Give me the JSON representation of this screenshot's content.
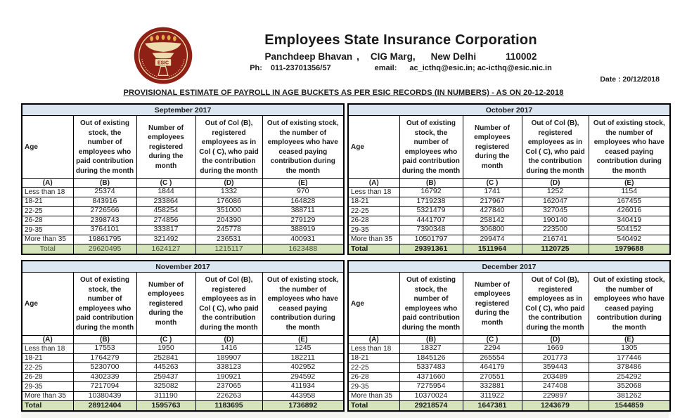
{
  "page": {
    "doc_title": "PROVISIONAL ESTIMATE OF PAYROLL IN AGE BUCKETS AS PER ESIC RECORDS (IN NUMBERS) - AS ON 20-12-2018"
  },
  "header": {
    "logo_acronym": "ESIC",
    "org_name": "Employees State Insurance Corporation",
    "address_building": "Panchdeep Bhavan",
    "address_comma": ",",
    "address_street": "CIG Marg,",
    "address_city": "New Delhi",
    "address_pin": "110002",
    "ph_label": "Ph:",
    "phone": "011-23701356/57",
    "email_label": "email:",
    "email": "ac_icthq@esic.in; ac-icthq@esic.nic.in",
    "date_label": "Date : 20/12/2018"
  },
  "colors": {
    "month_header_bg": "#dce6f1",
    "total_row_bg": "#d6e4bc",
    "logo_maroon": "#8e2016",
    "logo_cream": "#efdcae",
    "logo_gold": "#e7a93c"
  },
  "tables": [
    {
      "month": "September 2017",
      "col_headers": [
        "Age",
        "Out of existing stock, the number of employees who paid contribution during the month",
        "Number of employees registered during the month",
        "Out of Col (B), registered employees as in Col ( C), who paid the contribution during the month",
        "Out of existing stock, the number of  employees who have ceased paying contribution during the month"
      ],
      "letter_row": [
        "(A)",
        "(B)",
        "(C )",
        "(D)",
        "(E)"
      ],
      "rows": [
        [
          "Less than 18",
          "25374",
          "1844",
          "1332",
          "970"
        ],
        [
          "18-21",
          "843916",
          "233864",
          "176086",
          "164828"
        ],
        [
          "22-25",
          "2726566",
          "458254",
          "351000",
          "388711"
        ],
        [
          "26-28",
          "2398743",
          "274856",
          "204390",
          "279129"
        ],
        [
          "29-35",
          "3764101",
          "333817",
          "245778",
          "388919"
        ],
        [
          "More than 35",
          "19861795",
          "321492",
          "236531",
          "400931"
        ]
      ],
      "total": [
        "Total",
        "29620495",
        "1624127",
        "1215117",
        "1623488"
      ],
      "total_style": "centered"
    },
    {
      "month": "October 2017",
      "col_headers": [
        "Age",
        "Out of existing stock, the number of employees who paid contribution during the month",
        "Number of employees registered during the month",
        "Out of Col (B), registered employees as in Col ( C), who paid the contribution during the month",
        "Out of existing stock, the number of employees  who have ceased paying contribution during the month"
      ],
      "letter_row": [
        "(A)",
        "(B)",
        "(C )",
        "(D)",
        "(E)"
      ],
      "rows": [
        [
          "Less than 18",
          "16792",
          "1741",
          "1252",
          "1154"
        ],
        [
          "18-21",
          "1719238",
          "217967",
          "162047",
          "167455"
        ],
        [
          "22-25",
          "5321479",
          "427840",
          "327045",
          "426016"
        ],
        [
          "26-28",
          "4441707",
          "258142",
          "190140",
          "340419"
        ],
        [
          "29-35",
          "7390348",
          "306800",
          "223500",
          "504152"
        ],
        [
          "More than 35",
          "10501797",
          "299474",
          "216741",
          "540492"
        ]
      ],
      "total": [
        "Total",
        "29391361",
        "1511964",
        "1120725",
        "1979688"
      ],
      "total_style": "left-bold"
    },
    {
      "month": "November 2017",
      "col_headers": [
        "Age",
        "Out of existing stock, the number of employees who paid contribution during the month",
        "Number of employees registered during the month",
        "Out of Col (B), registered employees as in Col ( C), who paid the contribution during the month",
        "Out of existing stock, the number of  employees who have ceased paying contribution during the month"
      ],
      "letter_row": [
        "(A)",
        "(B)",
        "(C )",
        "(D)",
        "(E)"
      ],
      "rows": [
        [
          "Less than 18",
          "17553",
          "1950",
          "1416",
          "1245"
        ],
        [
          "18-21",
          "1764279",
          "252841",
          "189907",
          "182211"
        ],
        [
          "22-25",
          "5230700",
          "445263",
          "338123",
          "402952"
        ],
        [
          "26-28",
          "4302339",
          "259437",
          "190921",
          "294592"
        ],
        [
          "29-35",
          "7217094",
          "325082",
          "237065",
          "411934"
        ],
        [
          "More than 35",
          "10380439",
          "311190",
          "226263",
          "443958"
        ]
      ],
      "total": [
        "Total",
        "28912404",
        "1595763",
        "1183695",
        "1736892"
      ],
      "total_style": "left-bold"
    },
    {
      "month": "December 2017",
      "col_headers": [
        "Age",
        "Out of existing stock, the number of employees who paid contribution during the month",
        "Number of employees registered during the month",
        "Out of Col (B), registered employees as in Col ( C), who paid the contribution during the month",
        "Out of existing stock, the number of employees  who have ceased paying contribution during the month"
      ],
      "letter_row": [
        "(A)",
        "(B)",
        "(C )",
        "(D)",
        "(E)"
      ],
      "rows": [
        [
          "Less than 18",
          "18327",
          "2294",
          "1669",
          "1305"
        ],
        [
          "18-21",
          "1845126",
          "265554",
          "201773",
          "177446"
        ],
        [
          "22-25",
          "5337483",
          "464179",
          "359443",
          "378486"
        ],
        [
          "26-28",
          "4371660",
          "270551",
          "203489",
          "254292"
        ],
        [
          "29-35",
          "7275954",
          "332881",
          "247408",
          "352068"
        ],
        [
          "More than 35",
          "10370024",
          "311922",
          "229897",
          "381262"
        ]
      ],
      "total": [
        "Total",
        "29218574",
        "1647381",
        "1243679",
        "1544859"
      ],
      "total_style": "left-bold"
    }
  ]
}
